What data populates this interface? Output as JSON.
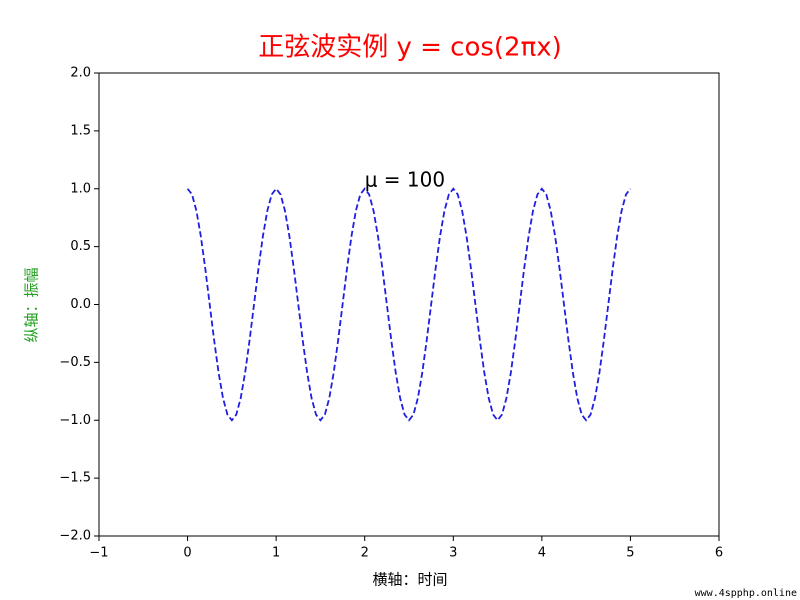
{
  "chart_data": {
    "type": "line",
    "title": "正弦波实例 y = cos(2πx)",
    "x_label": "横轴：时间",
    "y_label": "纵轴：振幅",
    "annotations": [
      {
        "text": "μ = 100",
        "x": 2,
        "y": 1
      }
    ],
    "watermark": "www.4spphp.online",
    "xlim": [
      -1,
      6
    ],
    "ylim": [
      -2,
      2
    ],
    "xticks": [
      {
        "value": -1,
        "label": "−1"
      },
      0,
      1,
      2,
      3,
      4,
      5,
      6
    ],
    "yticks": [
      {
        "value": -2,
        "label": "−2.0"
      },
      {
        "value": -1.5,
        "label": "−1.5"
      },
      {
        "value": -1,
        "label": "−1.0"
      },
      {
        "value": -0.5,
        "label": "−0.5"
      },
      {
        "value": 0,
        "label": "0.0"
      },
      {
        "value": 0.5,
        "label": "0.5"
      },
      {
        "value": 1,
        "label": "1.0"
      },
      {
        "value": 1.5,
        "label": "1.5"
      },
      {
        "value": 2,
        "label": "2.0"
      }
    ],
    "x": [
      0,
      0.05,
      0.1,
      0.15,
      0.2,
      0.25,
      0.3,
      0.35,
      0.4,
      0.45,
      0.5,
      0.55,
      0.6,
      0.65,
      0.7,
      0.75,
      0.8,
      0.85,
      0.9,
      0.95,
      1,
      1.05,
      1.1,
      1.15,
      1.2,
      1.25,
      1.3,
      1.35,
      1.4,
      1.45,
      1.5,
      1.55,
      1.6,
      1.65,
      1.7,
      1.75,
      1.8,
      1.85,
      1.9,
      1.95,
      2,
      2.05,
      2.1,
      2.15,
      2.2,
      2.25,
      2.3,
      2.35,
      2.4,
      2.45,
      2.5,
      2.55,
      2.6,
      2.65,
      2.7,
      2.75,
      2.8,
      2.85,
      2.9,
      2.95,
      3,
      3.05,
      3.1,
      3.15,
      3.2,
      3.25,
      3.3,
      3.35,
      3.4,
      3.45,
      3.5,
      3.55,
      3.6,
      3.65,
      3.7,
      3.75,
      3.8,
      3.85,
      3.9,
      3.95,
      4,
      4.05,
      4.1,
      4.15,
      4.2,
      4.25,
      4.3,
      4.35,
      4.4,
      4.45,
      4.5,
      4.55,
      4.6,
      4.65,
      4.7,
      4.75,
      4.8,
      4.85,
      4.9,
      4.95,
      5
    ],
    "series": [
      {
        "color": "#1f1fe0",
        "values": [
          1,
          0.951,
          0.809,
          0.588,
          0.309,
          0,
          -0.309,
          -0.588,
          -0.809,
          -0.951,
          -1,
          -0.951,
          -0.809,
          -0.588,
          -0.309,
          0,
          0.309,
          0.588,
          0.809,
          0.951,
          1,
          0.951,
          0.809,
          0.588,
          0.309,
          0,
          -0.309,
          -0.588,
          -0.809,
          -0.951,
          -1,
          -0.951,
          -0.809,
          -0.588,
          -0.309,
          0,
          0.309,
          0.588,
          0.809,
          0.951,
          1,
          0.951,
          0.809,
          0.588,
          0.309,
          0,
          -0.309,
          -0.588,
          -0.809,
          -0.951,
          -1,
          -0.951,
          -0.809,
          -0.588,
          -0.309,
          0,
          0.309,
          0.588,
          0.809,
          0.951,
          1,
          0.951,
          0.809,
          0.588,
          0.309,
          0,
          -0.309,
          -0.588,
          -0.809,
          -0.951,
          -1,
          -0.951,
          -0.809,
          -0.588,
          -0.309,
          0,
          0.309,
          0.588,
          0.809,
          0.951,
          1,
          0.951,
          0.809,
          0.588,
          0.309,
          0,
          -0.309,
          -0.588,
          -0.809,
          -0.951,
          -1,
          -0.951,
          -0.809,
          -0.588,
          -0.309,
          0,
          0.309,
          0.588,
          0.809,
          0.951,
          1
        ]
      }
    ],
    "title_color": "#ff0000",
    "y_label_color": "#22a022",
    "grid": false
  }
}
